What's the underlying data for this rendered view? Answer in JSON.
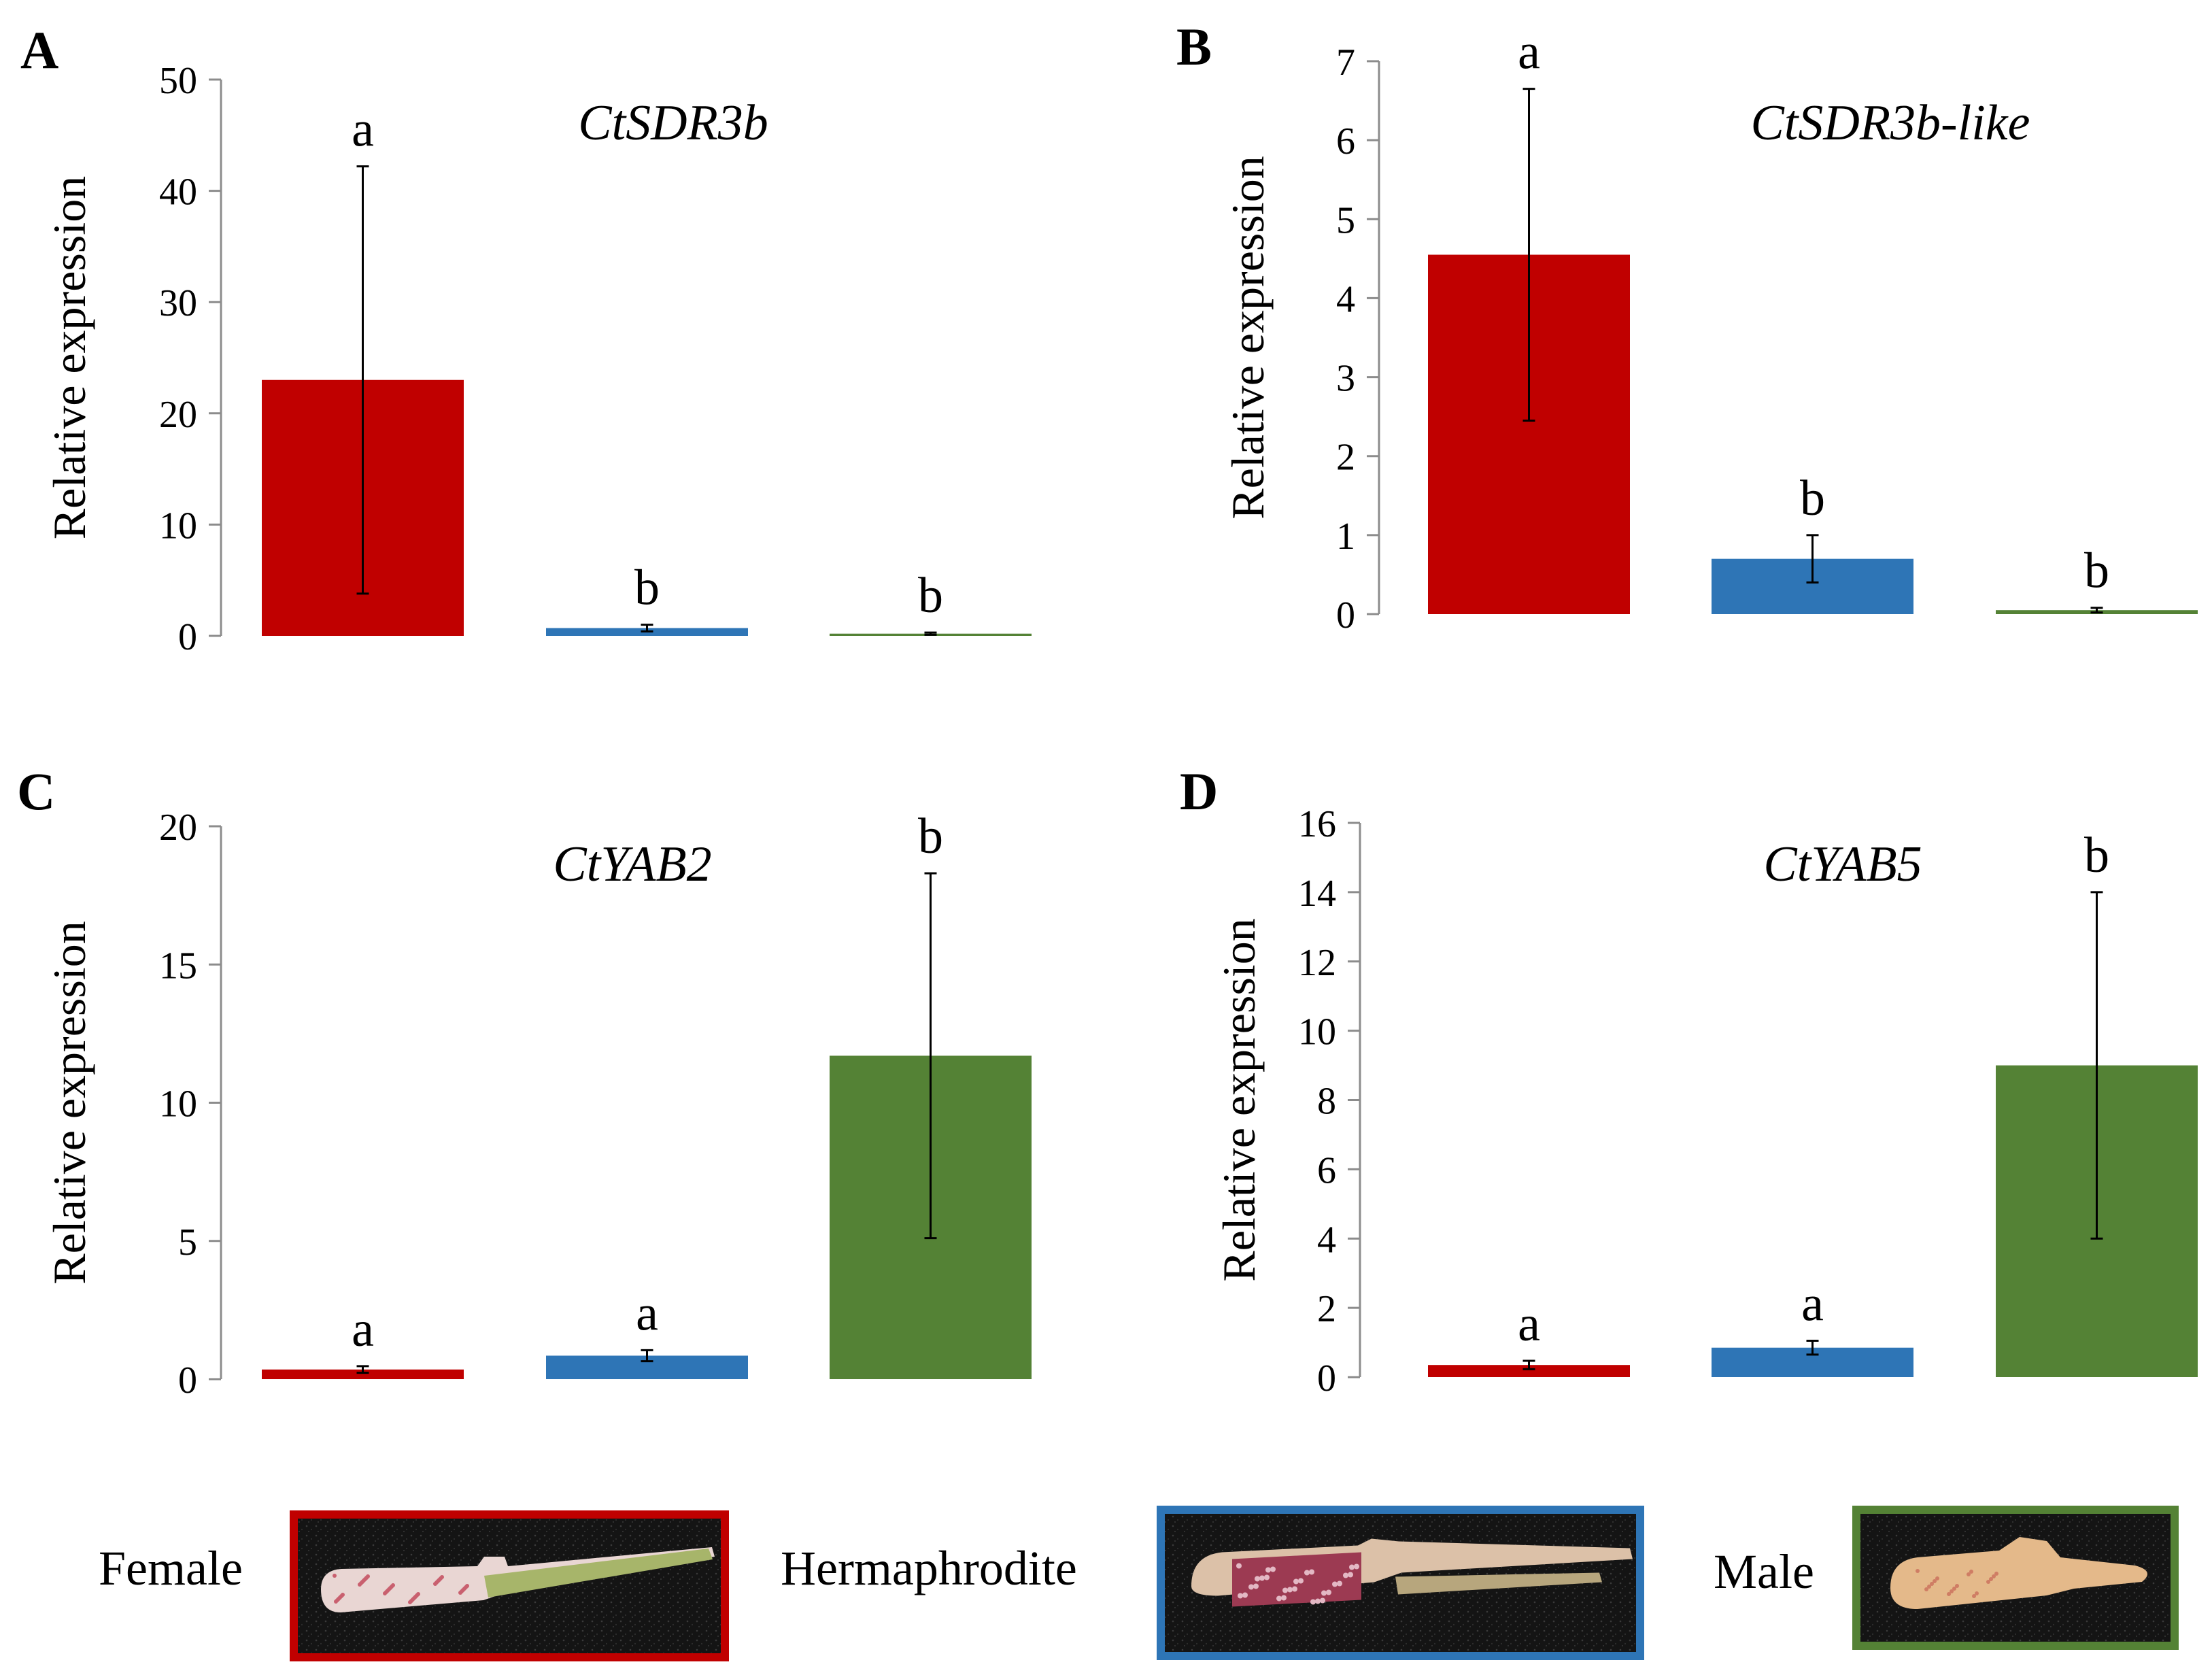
{
  "colors": {
    "female": "#c00000",
    "hermaphrodite": "#2e75b6",
    "male": "#548235"
  },
  "legend": [
    {
      "label": "Female",
      "color_key": "female"
    },
    {
      "label": "Hermaphrodite",
      "color_key": "hermaphrodite"
    },
    {
      "label": "Male",
      "color_key": "male"
    }
  ],
  "chart_data": [
    {
      "type": "bar",
      "panel": "A",
      "title": "CtSDR3b",
      "ylabel": "Relative expression",
      "ylim": [
        0,
        50
      ],
      "yticks": [
        0,
        10,
        20,
        30,
        40,
        50
      ],
      "categories": [
        "Female",
        "Hermaphrodite",
        "Male"
      ],
      "values": [
        23,
        0.7,
        0.2
      ],
      "error": [
        19.2,
        0.3,
        0.1
      ],
      "significance": [
        "a",
        "b",
        "b"
      ]
    },
    {
      "type": "bar",
      "panel": "B",
      "title": "CtSDR3b-like",
      "ylabel": "Relative expression",
      "ylim": [
        0,
        7
      ],
      "yticks": [
        0,
        1,
        2,
        3,
        4,
        5,
        6,
        7
      ],
      "categories": [
        "Female",
        "Hermaphrodite",
        "Male"
      ],
      "values": [
        4.55,
        0.7,
        0.05
      ],
      "error": [
        2.1,
        0.3,
        0.03
      ],
      "significance": [
        "a",
        "b",
        "b"
      ]
    },
    {
      "type": "bar",
      "panel": "C",
      "title": "CtYAB2",
      "ylabel": "Relative expression",
      "ylim": [
        0,
        20
      ],
      "yticks": [
        0,
        5,
        10,
        15,
        20
      ],
      "categories": [
        "Female",
        "Hermaphrodite",
        "Male"
      ],
      "values": [
        0.35,
        0.85,
        11.7
      ],
      "error": [
        0.12,
        0.2,
        6.6
      ],
      "significance": [
        "a",
        "a",
        "b"
      ]
    },
    {
      "type": "bar",
      "panel": "D",
      "title": "CtYAB5",
      "ylabel": "Relative expression",
      "ylim": [
        0,
        16
      ],
      "yticks": [
        0,
        2,
        4,
        6,
        8,
        10,
        12,
        14,
        16
      ],
      "categories": [
        "Female",
        "Hermaphrodite",
        "Male"
      ],
      "values": [
        0.35,
        0.85,
        9.0
      ],
      "error": [
        0.12,
        0.2,
        5.0
      ],
      "significance": [
        "a",
        "a",
        "b"
      ]
    }
  ]
}
